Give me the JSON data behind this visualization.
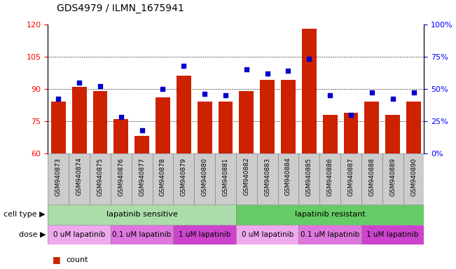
{
  "title": "GDS4979 / ILMN_1675941",
  "samples": [
    "GSM940873",
    "GSM940874",
    "GSM940875",
    "GSM940876",
    "GSM940877",
    "GSM940878",
    "GSM940879",
    "GSM940880",
    "GSM940881",
    "GSM940882",
    "GSM940883",
    "GSM940884",
    "GSM940885",
    "GSM940886",
    "GSM940887",
    "GSM940888",
    "GSM940889",
    "GSM940890"
  ],
  "counts": [
    84,
    91,
    89,
    76,
    68,
    86,
    96,
    84,
    84,
    89,
    94,
    94,
    118,
    78,
    79,
    84,
    78,
    84
  ],
  "percentiles": [
    42,
    55,
    52,
    28,
    18,
    50,
    68,
    46,
    45,
    65,
    62,
    64,
    73,
    45,
    30,
    47,
    42,
    47
  ],
  "ylim_left": [
    60,
    120
  ],
  "ylim_right": [
    0,
    100
  ],
  "yticks_left": [
    60,
    75,
    90,
    105,
    120
  ],
  "yticks_right": [
    0,
    25,
    50,
    75,
    100
  ],
  "ytick_labels_right": [
    "0%",
    "25%",
    "50%",
    "75%",
    "100%"
  ],
  "bar_color": "#cc2200",
  "dot_color": "#0000cc",
  "bar_width": 0.7,
  "cell_type_groups": [
    {
      "label": "lapatinib sensitive",
      "start": 0,
      "end": 9,
      "color": "#aaddaa"
    },
    {
      "label": "lapatinib resistant",
      "start": 9,
      "end": 18,
      "color": "#66cc66"
    }
  ],
  "dose_groups": [
    {
      "label": "0 uM lapatinib",
      "start": 0,
      "end": 3,
      "color": "#eeaaee"
    },
    {
      "label": "0.1 uM lapatinib",
      "start": 3,
      "end": 6,
      "color": "#dd77dd"
    },
    {
      "label": "1 uM lapatinib",
      "start": 6,
      "end": 9,
      "color": "#cc44cc"
    },
    {
      "label": "0 uM lapatinib",
      "start": 9,
      "end": 12,
      "color": "#eeaaee"
    },
    {
      "label": "0.1 uM lapatinib",
      "start": 12,
      "end": 15,
      "color": "#dd77dd"
    },
    {
      "label": "1 uM lapatinib",
      "start": 15,
      "end": 18,
      "color": "#cc44cc"
    }
  ],
  "xlabel_bg": "#cccccc",
  "xlabel_edge": "#888888",
  "grid_linestyle": "dotted",
  "title_fontsize": 10,
  "tick_fontsize": 7,
  "xlabel_fontsize": 6.5,
  "label_fontsize": 8,
  "row_label_fontsize": 8,
  "legend_fontsize": 8,
  "background_color": "#ffffff"
}
